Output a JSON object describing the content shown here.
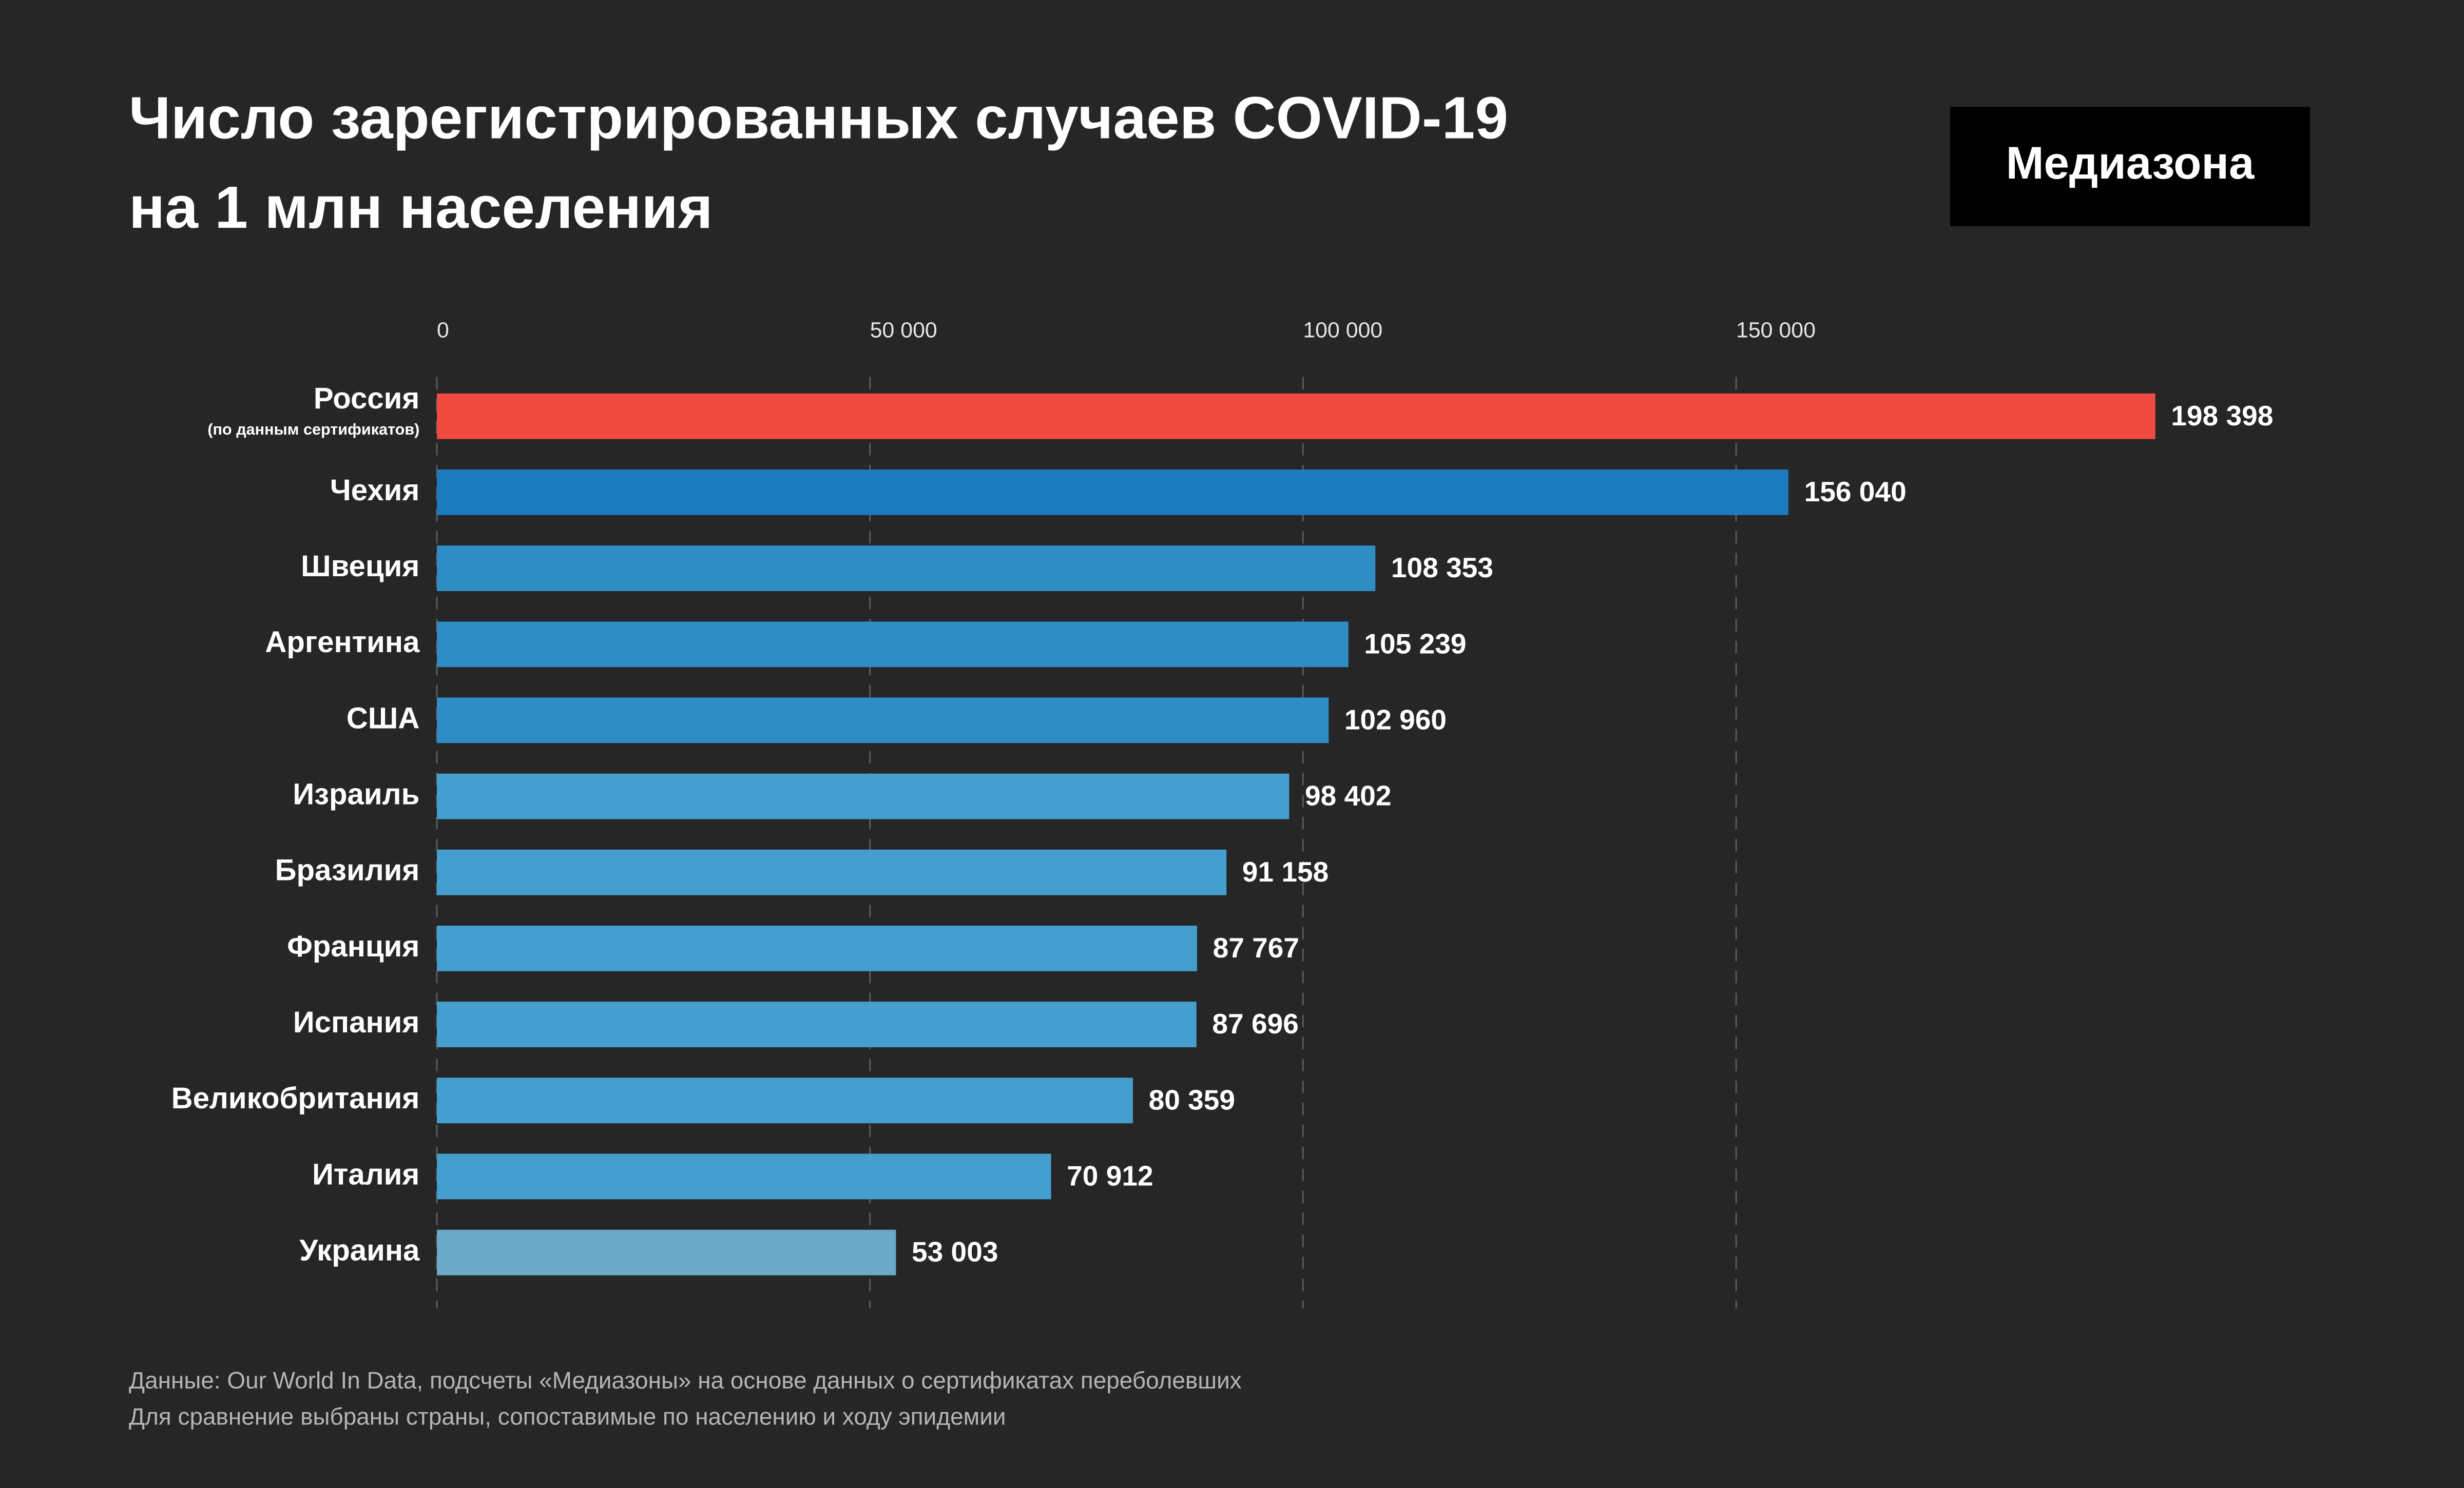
{
  "chart_data": {
    "type": "hbar",
    "title": [
      "Число зарегистрированных случаев COVID-19",
      "на 1 млн населения"
    ],
    "logo": "Медиазона",
    "categories": [
      "Россия",
      "Чехия",
      "Швеция",
      "Аргентина",
      "США",
      "Израиль",
      "Бразилия",
      "Франция",
      "Испания",
      "Великобритания",
      "Италия",
      "Украина"
    ],
    "category_notes": {
      "Россия": "(по данным сертификатов)"
    },
    "values": [
      198398,
      156040,
      108353,
      105239,
      102960,
      98402,
      91158,
      87767,
      87696,
      80359,
      70912,
      53003
    ],
    "value_labels": [
      "198 398",
      "156 040",
      "108 353",
      "105 239",
      "102 960",
      "98 402",
      "91 158",
      "87 767",
      "87 696",
      "80 359",
      "70 912",
      "53 003"
    ],
    "colors": [
      "#f14a40",
      "#1a7bbf",
      "#2f8dc5",
      "#2f8dc5",
      "#2f8dc5",
      "#449fcf",
      "#449fcf",
      "#449fcf",
      "#449fcf",
      "#449fcf",
      "#449fcf",
      "#6aa9c8"
    ],
    "xlim": [
      0,
      200000
    ],
    "xticks": [
      0,
      {
        "value": 50000,
        "label": "50 000"
      },
      {
        "value": 100000,
        "label": "100 000"
      },
      {
        "value": 150000,
        "label": "150 000"
      }
    ],
    "grid": true,
    "source": [
      "Данные: Our World In Data, подсчеты «Медиазоны» на основе данных о сертификатах переболевших",
      "Для сравнение выбраны страны, сопоставимые по населению и ходу эпидемии"
    ]
  }
}
